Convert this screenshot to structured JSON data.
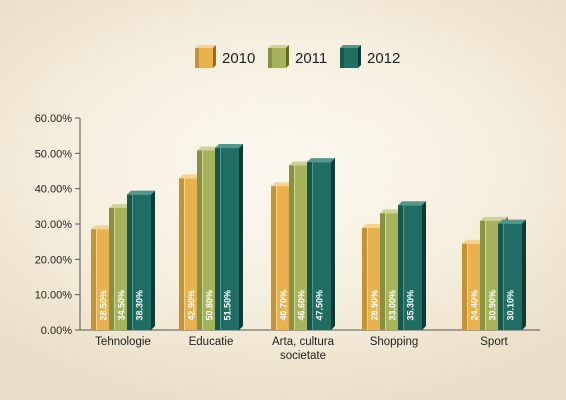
{
  "chart_data": {
    "type": "bar",
    "categories": [
      "Tehnologie",
      "Educatie",
      "Arta, cultura societate",
      "Shopping",
      "Sport"
    ],
    "category_lines": [
      [
        "Tehnologie"
      ],
      [
        "Educatie"
      ],
      [
        "Arta, cultura",
        "societate"
      ],
      [
        "Shopping"
      ],
      [
        "Sport"
      ]
    ],
    "series": [
      {
        "name": "2010",
        "values": [
          28.5,
          42.9,
          40.7,
          28.9,
          24.4
        ],
        "labels": [
          "28.50%",
          "42.90%",
          "40.70%",
          "28.90%",
          "24.40%"
        ],
        "color": "#e8b24f",
        "dark": "#9c6c17",
        "light": "#f6d48c"
      },
      {
        "name": "2011",
        "values": [
          34.5,
          50.8,
          46.6,
          33.0,
          30.9
        ],
        "labels": [
          "34.50%",
          "50.80%",
          "46.60%",
          "33.00%",
          "30.90%"
        ],
        "color": "#a6b35b",
        "dark": "#5f6a22",
        "light": "#cdd591"
      },
      {
        "name": "2012",
        "values": [
          38.3,
          51.5,
          47.5,
          35.3,
          30.1
        ],
        "labels": [
          "38.30%",
          "51.50%",
          "47.50%",
          "35.30%",
          "30.10%"
        ],
        "color": "#1f6d63",
        "dark": "#0d3b35",
        "light": "#4f9a8f"
      }
    ],
    "y_ticks": [
      "0.00%",
      "10.00%",
      "20.00%",
      "30.00%",
      "40.00%",
      "50.00%",
      "60.00%"
    ],
    "ylim": [
      0,
      60
    ],
    "legend_position": "top",
    "grid": false
  }
}
